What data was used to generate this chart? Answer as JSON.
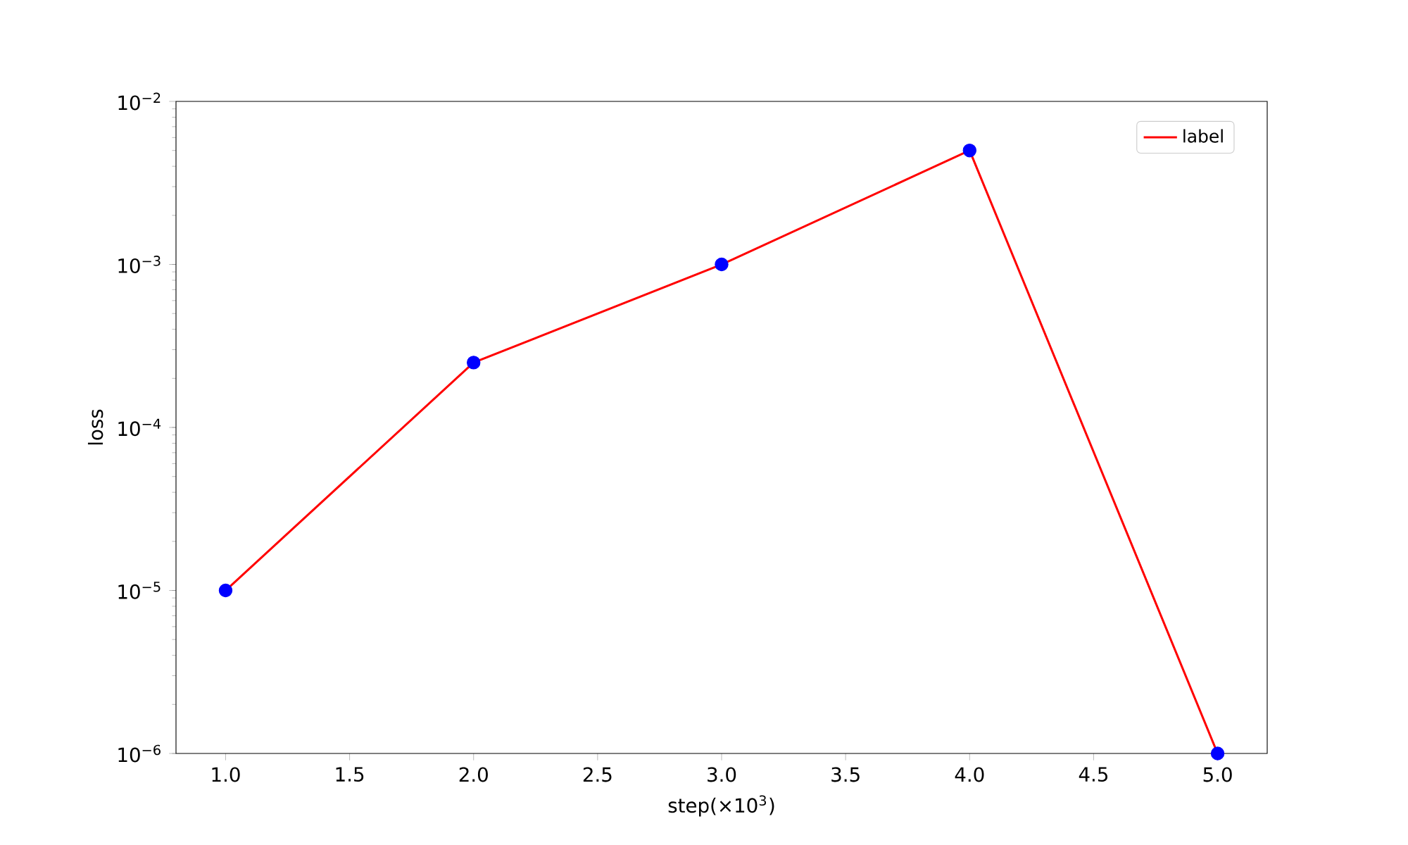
{
  "chart_data": {
    "type": "line",
    "xlabel": "step(×10$^{3}$)",
    "ylabel": "loss",
    "x": [
      1,
      2,
      3,
      4,
      5
    ],
    "series": [
      {
        "type": "scatter",
        "color": "#0000ff",
        "values": [
          1e-05,
          0.00025,
          0.001,
          0.005,
          1e-06
        ]
      },
      {
        "name": "label",
        "color": "#ff0000",
        "values": [
          1e-05,
          0.00025,
          0.001,
          0.005,
          1e-06
        ]
      }
    ],
    "log": "y",
    "legend": "top right",
    "xlim": [
      0.8,
      5.2
    ],
    "xticks": [
      {
        "value": 1,
        "label": "1.0"
      },
      {
        "value": 1.5,
        "label": "1.5"
      },
      {
        "value": 2,
        "label": "2.0"
      },
      {
        "value": 2.5,
        "label": "2.5"
      },
      {
        "value": 3,
        "label": "3.0"
      },
      {
        "value": 3.5,
        "label": "3.5"
      },
      {
        "value": 4,
        "label": "4.0"
      },
      {
        "value": 4.5,
        "label": "4.5"
      },
      {
        "value": 5,
        "label": "5.0"
      }
    ],
    "ylim": [
      1e-06,
      0.01
    ],
    "yticks": [
      {
        "value": 1e-06,
        "label": "10$^{−6}$"
      },
      {
        "value": 1e-05,
        "label": "10$^{−5}$"
      },
      {
        "value": 0.0001,
        "label": "10$^{−4}$"
      },
      {
        "value": 0.001,
        "label": "10$^{−3}$"
      },
      {
        "value": 0.01,
        "label": "10$^{−2}$"
      }
    ]
  }
}
